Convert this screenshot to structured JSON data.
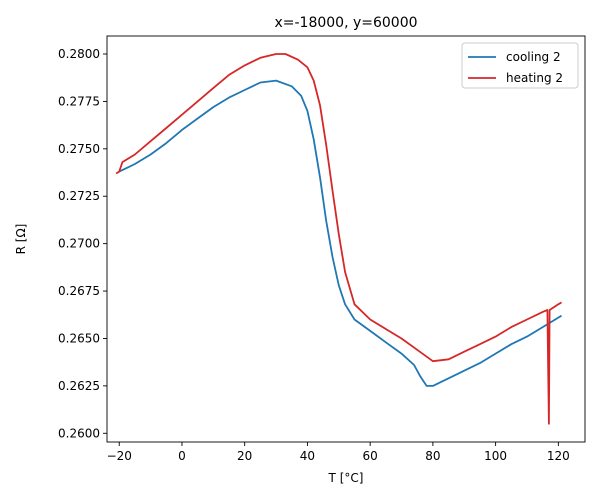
{
  "chart_data": {
    "type": "line",
    "title": "x=-18000, y=60000",
    "xlabel": "T [°C]",
    "ylabel": "R [Ω]",
    "xlim": [
      -23.9,
      128.5
    ],
    "ylim": [
      0.25954,
      0.28095
    ],
    "xticks": [
      -20,
      0,
      20,
      40,
      60,
      80,
      100,
      120
    ],
    "yticks": [
      "0.2600",
      "0.2625",
      "0.2650",
      "0.2675",
      "0.2700",
      "0.2725",
      "0.2750",
      "0.2775",
      "0.2800"
    ],
    "grid": false,
    "legend_position": "top-right",
    "series": [
      {
        "name": "cooling 2",
        "color": "#1f77b4",
        "x": [
          -20,
          -15,
          -10,
          -5,
          0,
          5,
          10,
          15,
          20,
          25,
          30,
          35,
          38,
          40,
          42,
          44,
          46,
          48,
          50,
          52,
          55,
          60,
          65,
          70,
          74,
          76,
          78,
          80,
          85,
          90,
          95,
          100,
          105,
          110,
          115,
          120,
          121
        ],
        "y": [
          0.2738,
          0.2742,
          0.2747,
          0.2753,
          0.276,
          0.2766,
          0.2772,
          0.2777,
          0.2781,
          0.2785,
          0.2786,
          0.2783,
          0.2778,
          0.277,
          0.2755,
          0.2735,
          0.2712,
          0.2693,
          0.2678,
          0.2668,
          0.266,
          0.2654,
          0.2648,
          0.2642,
          0.2636,
          0.263,
          0.2625,
          0.2625,
          0.2629,
          0.2633,
          0.2637,
          0.2642,
          0.2647,
          0.2651,
          0.2656,
          0.2661,
          0.2662
        ]
      },
      {
        "name": "heating 2",
        "color": "#d62728",
        "x": [
          -21,
          -20,
          -19,
          -15,
          -10,
          -5,
          0,
          5,
          10,
          15,
          20,
          25,
          30,
          33,
          37,
          40,
          42,
          44,
          46,
          48,
          50,
          52,
          55,
          60,
          65,
          70,
          75,
          80,
          85,
          90,
          95,
          100,
          105,
          110,
          115,
          116.5,
          117,
          117.2,
          120,
          121
        ],
        "y": [
          0.2737,
          0.2738,
          0.2743,
          0.2747,
          0.2754,
          0.2761,
          0.2768,
          0.2775,
          0.2782,
          0.2789,
          0.2794,
          0.2798,
          0.28,
          0.28,
          0.2797,
          0.2793,
          0.2786,
          0.2773,
          0.2752,
          0.2728,
          0.2705,
          0.2685,
          0.2668,
          0.266,
          0.2655,
          0.265,
          0.2644,
          0.2638,
          0.2639,
          0.2643,
          0.2647,
          0.2651,
          0.2656,
          0.266,
          0.2664,
          0.2665,
          0.2605,
          0.2665,
          0.2668,
          0.2669
        ]
      }
    ]
  }
}
